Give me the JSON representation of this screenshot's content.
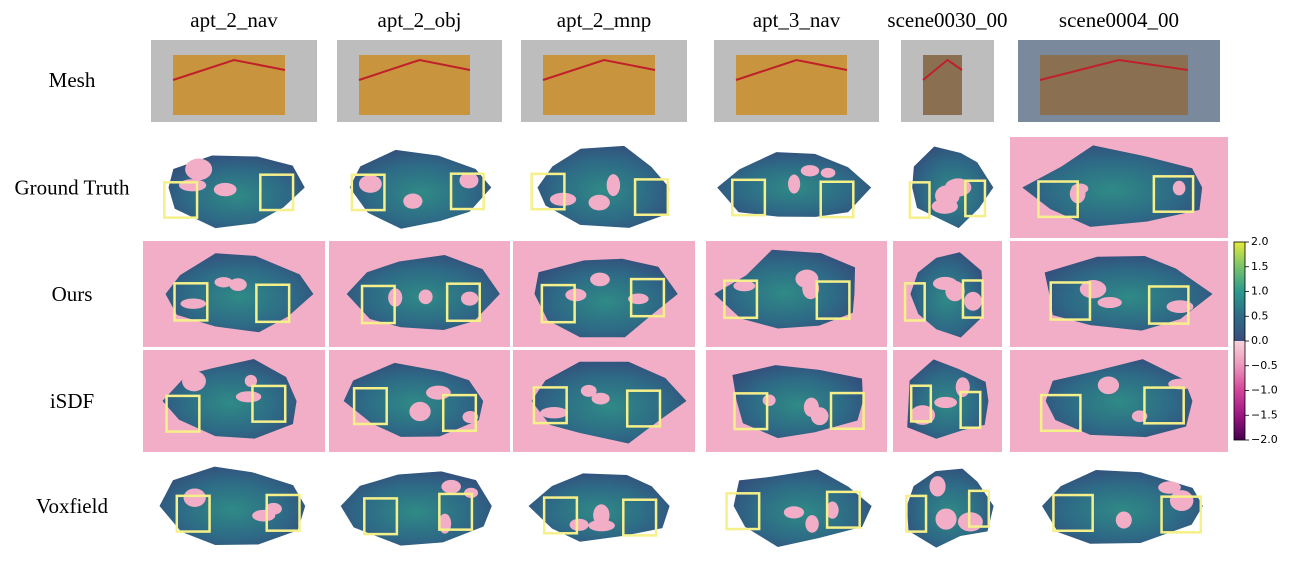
{
  "columns": [
    "apt_2_nav",
    "apt_2_obj",
    "apt_2_mnp",
    "apt_3_nav",
    "scene0030_00",
    "scene0004_00"
  ],
  "rows": [
    "Mesh",
    "Ground Truth",
    "Ours",
    "iSDF",
    "Voxfield"
  ],
  "colorbar": {
    "ylim": [
      -2,
      2
    ],
    "ticks": [
      {
        "value": 2,
        "label": "2.0"
      },
      {
        "value": 1.5,
        "label": "1.5"
      },
      {
        "value": 1,
        "label": "1.0"
      },
      {
        "value": 0.5,
        "label": "0.5"
      },
      {
        "value": 0,
        "label": "0.0"
      },
      {
        "value": -0.5,
        "label": "−0.5"
      },
      {
        "value": -1,
        "label": "−1.0"
      },
      {
        "value": -1.5,
        "label": "−1.5"
      },
      {
        "value": -2,
        "label": "−2.0"
      }
    ]
  }
}
